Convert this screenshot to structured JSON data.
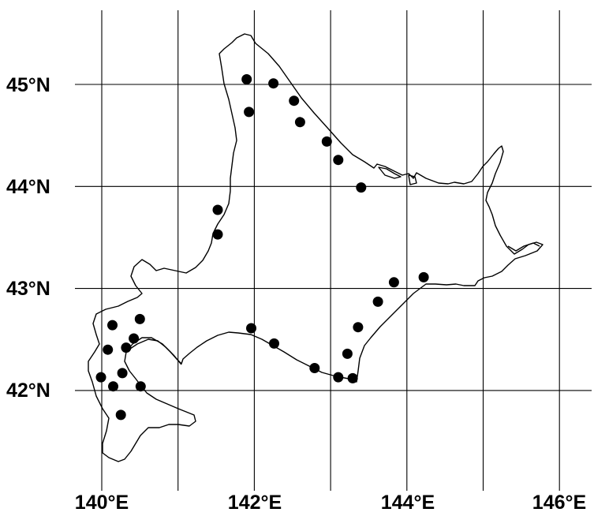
{
  "map": {
    "lat_ticks": [
      {
        "value": 45,
        "label": "45°N"
      },
      {
        "value": 44,
        "label": "44°N"
      },
      {
        "value": 43,
        "label": "43°N"
      },
      {
        "value": 42,
        "label": "42°N"
      }
    ],
    "lon_ticks": [
      {
        "value": 140,
        "label": "140°E"
      },
      {
        "value": 142,
        "label": "142°E"
      },
      {
        "value": 144,
        "label": "144°E"
      },
      {
        "value": 146,
        "label": "146°E"
      }
    ],
    "grid_lons": [
      140,
      141,
      142,
      143,
      144,
      145,
      146
    ],
    "grid_lats": [
      45,
      44,
      43,
      42
    ],
    "colors": {
      "marker": "#000000",
      "coastline": "#000000",
      "grid": "#000000",
      "background": "#ffffff"
    },
    "sites": [
      {
        "lon": 141.9,
        "lat": 45.05
      },
      {
        "lon": 142.25,
        "lat": 45.01
      },
      {
        "lon": 141.93,
        "lat": 44.73
      },
      {
        "lon": 142.52,
        "lat": 44.84
      },
      {
        "lon": 142.6,
        "lat": 44.63
      },
      {
        "lon": 142.95,
        "lat": 44.44
      },
      {
        "lon": 143.1,
        "lat": 44.26
      },
      {
        "lon": 143.4,
        "lat": 43.99
      },
      {
        "lon": 141.52,
        "lat": 43.77
      },
      {
        "lon": 141.52,
        "lat": 43.53
      },
      {
        "lon": 144.22,
        "lat": 43.11
      },
      {
        "lon": 143.83,
        "lat": 43.06
      },
      {
        "lon": 143.62,
        "lat": 42.87
      },
      {
        "lon": 143.36,
        "lat": 42.62
      },
      {
        "lon": 143.22,
        "lat": 42.36
      },
      {
        "lon": 143.1,
        "lat": 42.13
      },
      {
        "lon": 143.29,
        "lat": 42.12
      },
      {
        "lon": 142.79,
        "lat": 42.22
      },
      {
        "lon": 142.26,
        "lat": 42.46
      },
      {
        "lon": 141.96,
        "lat": 42.61
      },
      {
        "lon": 140.14,
        "lat": 42.64
      },
      {
        "lon": 140.5,
        "lat": 42.7
      },
      {
        "lon": 140.42,
        "lat": 42.51
      },
      {
        "lon": 140.08,
        "lat": 42.4
      },
      {
        "lon": 140.32,
        "lat": 42.42
      },
      {
        "lon": 140.27,
        "lat": 42.17
      },
      {
        "lon": 139.99,
        "lat": 42.13
      },
      {
        "lon": 140.15,
        "lat": 42.04
      },
      {
        "lon": 140.51,
        "lat": 42.04
      },
      {
        "lon": 140.25,
        "lat": 41.76
      }
    ]
  }
}
